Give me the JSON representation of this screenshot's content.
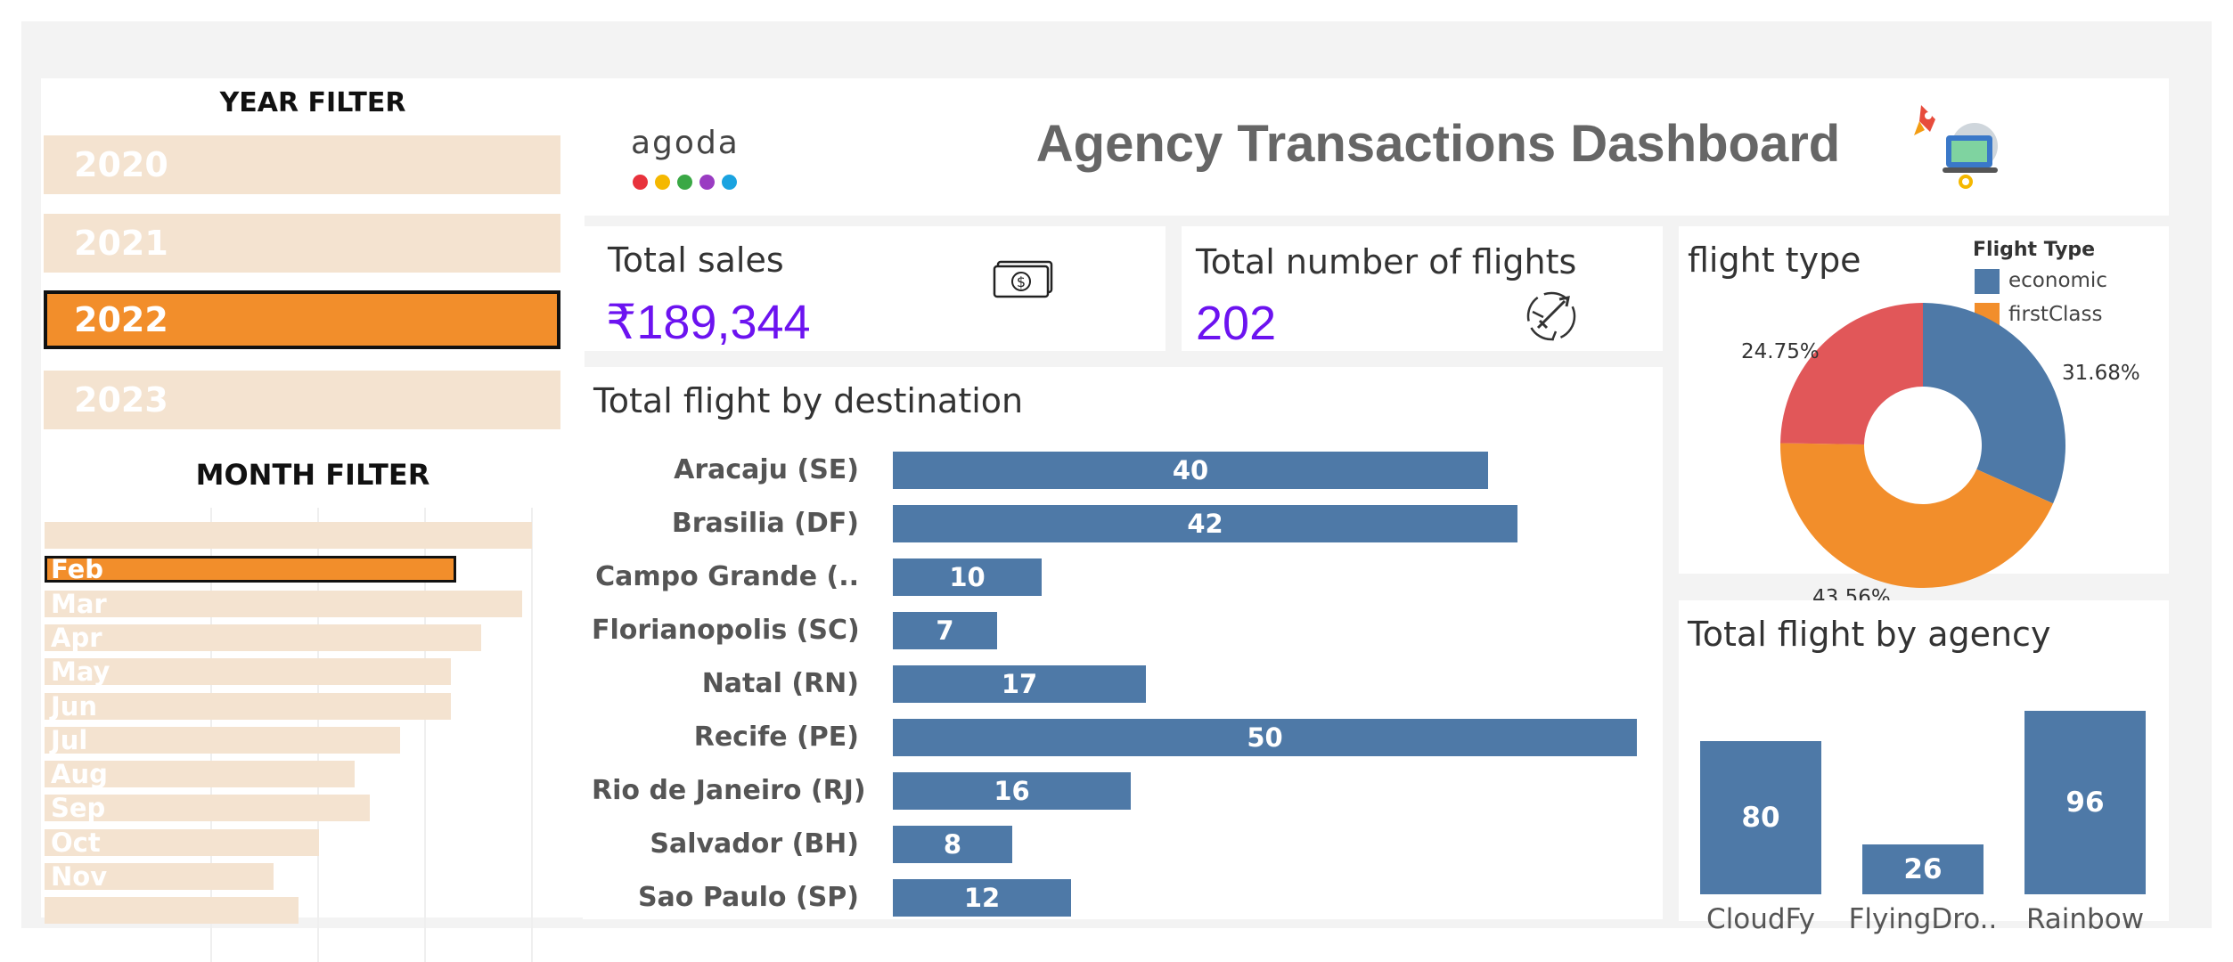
{
  "year_filter": {
    "title": "YEAR FILTER",
    "items": [
      {
        "label": "2020",
        "selected": false
      },
      {
        "label": "2021",
        "selected": false
      },
      {
        "label": "2022",
        "selected": true
      },
      {
        "label": "2023",
        "selected": false
      }
    ]
  },
  "month_filter": {
    "title": "MONTH FILTER",
    "items": [
      {
        "label": "",
        "value": 0.96,
        "selected": false
      },
      {
        "label": "Feb",
        "value": 0.81,
        "selected": true
      },
      {
        "label": "Mar",
        "value": 0.94,
        "selected": false
      },
      {
        "label": "Apr",
        "value": 0.86,
        "selected": false
      },
      {
        "label": "May",
        "value": 0.8,
        "selected": false
      },
      {
        "label": "Jun",
        "value": 0.8,
        "selected": false
      },
      {
        "label": "Jul",
        "value": 0.7,
        "selected": false
      },
      {
        "label": "Aug",
        "value": 0.61,
        "selected": false
      },
      {
        "label": "Sep",
        "value": 0.64,
        "selected": false
      },
      {
        "label": "Oct",
        "value": 0.54,
        "selected": false
      },
      {
        "label": "Nov",
        "value": 0.45,
        "selected": false
      },
      {
        "label": "",
        "value": 0.5,
        "selected": false
      }
    ]
  },
  "header": {
    "logo_text": "agoda",
    "logo_dot_colors": [
      "#e8323c",
      "#f5b800",
      "#3aa845",
      "#9a3cc2",
      "#1aa3e0"
    ],
    "title": "Agency Transactions Dashboard",
    "illustration_icon": "rocket-laptop-icon"
  },
  "kpis": {
    "total_sales": {
      "label": "Total sales",
      "value": "₹189,344",
      "icon": "cash-icon"
    },
    "total_flights": {
      "label": "Total number of flights",
      "value": "202",
      "icon": "globe-plane-icon"
    }
  },
  "colors": {
    "bar_blue": "#4e79a7",
    "orange": "#f28e2b",
    "red": "#e15759",
    "kpi_purple": "#6c13f0",
    "filter_beige": "#f4e3d0"
  },
  "destination_chart": {
    "title": "Total flight by destination",
    "chart_data": {
      "type": "bar",
      "orientation": "horizontal",
      "categories": [
        "Aracaju (SE)",
        "Brasilia (DF)",
        "Campo Grande (..",
        "Florianopolis (SC)",
        "Natal (RN)",
        "Recife (PE)",
        "Rio de Janeiro (RJ)",
        "Salvador (BH)",
        "Sao Paulo (SP)"
      ],
      "values": [
        40,
        42,
        10,
        7,
        17,
        50,
        16,
        8,
        12
      ],
      "xlim": [
        0,
        50
      ]
    }
  },
  "flight_type_chart": {
    "title": "flight type",
    "legend_title": "Flight Type",
    "legend": [
      {
        "name": "economic",
        "color": "#4e79a7"
      },
      {
        "name": "firstClass",
        "color": "#f28e2b"
      }
    ],
    "chart_data": {
      "type": "pie",
      "donut": true,
      "slices": [
        {
          "label": "31.68%",
          "value": 31.68,
          "color": "#4e79a7"
        },
        {
          "label": "43.56%",
          "value": 43.56,
          "color": "#f28e2b"
        },
        {
          "label": "24.75%",
          "value": 24.75,
          "color": "#e15759"
        }
      ]
    }
  },
  "agency_chart": {
    "title": "Total flight by agency",
    "chart_data": {
      "type": "bar",
      "categories": [
        "CloudFy",
        "FlyingDro..",
        "Rainbow"
      ],
      "values": [
        80,
        26,
        96
      ],
      "ylim": [
        0,
        96
      ]
    }
  }
}
